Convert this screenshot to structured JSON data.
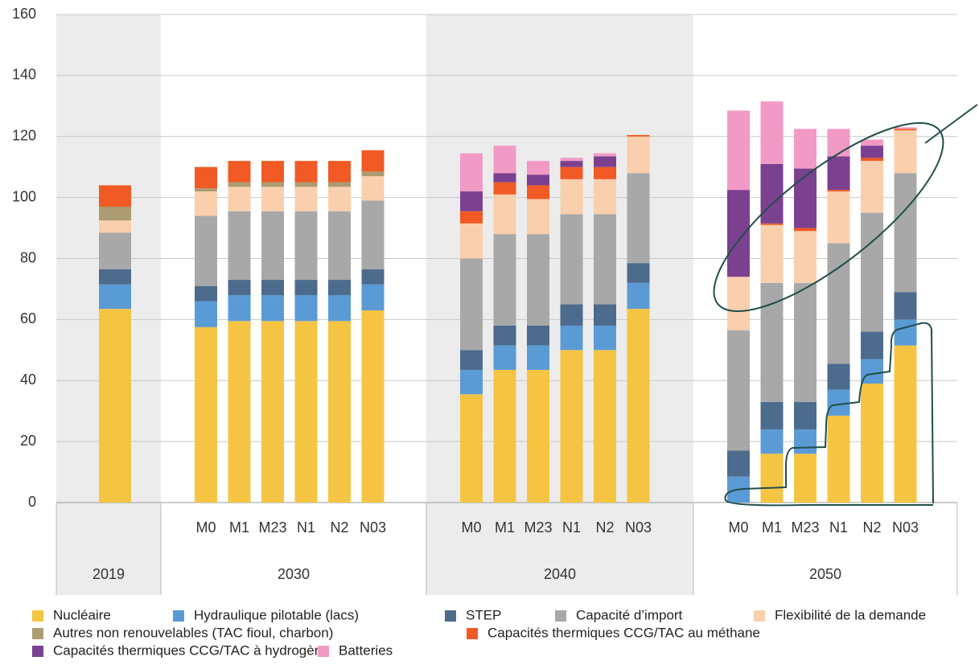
{
  "chart_data": {
    "type": "stacked-bar",
    "groups": [
      {
        "label": "2019",
        "categories": [
          null
        ]
      },
      {
        "label": "2030",
        "categories": [
          "M0",
          "M1",
          "M23",
          "N1",
          "N2",
          "N03"
        ]
      },
      {
        "label": "2040",
        "categories": [
          "M0",
          "M1",
          "M23",
          "N1",
          "N2",
          "N03"
        ]
      },
      {
        "label": "2050",
        "categories": [
          "M0",
          "M1",
          "M23",
          "N1",
          "N2",
          "N03"
        ]
      }
    ],
    "series": [
      {
        "name": "Nucléaire",
        "color": "#f5c443",
        "values": [
          63.5,
          57.5,
          59.5,
          59.5,
          59.5,
          59.5,
          63,
          35.5,
          43.5,
          43.5,
          50,
          50,
          63.5,
          0,
          16,
          16,
          28.5,
          39,
          51.5
        ]
      },
      {
        "name": "Hydraulique pilotable (lacs)",
        "color": "#5b9bd5",
        "values": [
          8,
          8.5,
          8.5,
          8.5,
          8.5,
          8.5,
          8.5,
          8,
          8,
          8,
          8,
          8,
          8.5,
          8.5,
          8,
          8,
          8.5,
          8,
          8.5
        ]
      },
      {
        "name": "STEP",
        "color": "#4d6b8c",
        "values": [
          5,
          5,
          5,
          5,
          5,
          5,
          5,
          6.5,
          6.5,
          6.5,
          7,
          7,
          6.5,
          8.5,
          9,
          9,
          8.5,
          9,
          9
        ]
      },
      {
        "name": "Capacité d’import",
        "color": "#a8a8a8",
        "values": [
          12,
          23,
          22.5,
          22.5,
          22.5,
          22.5,
          22.5,
          30,
          30,
          30,
          29.5,
          29.5,
          29.5,
          39.5,
          39,
          39,
          39.5,
          39,
          39
        ]
      },
      {
        "name": "Flexibilité de la demande",
        "color": "#f9cfad",
        "values": [
          4,
          8,
          8,
          8,
          8,
          8,
          8,
          11.5,
          13,
          11.5,
          11.5,
          11.5,
          12,
          17.5,
          19,
          17,
          17,
          17,
          14
        ]
      },
      {
        "name": "Autres non renouvelables (TAC fioul, charbon)",
        "color": "#ab9c72",
        "values": [
          4.5,
          1,
          1.5,
          1.5,
          1.5,
          1.5,
          1.5,
          0,
          0,
          0,
          0,
          0,
          0,
          0,
          0,
          0,
          0,
          0,
          0
        ]
      },
      {
        "name": "Capacités thermiques CCG/TAC au méthane",
        "color": "#f15a24",
        "values": [
          7,
          7,
          7,
          7,
          7,
          7,
          7,
          4,
          4,
          4.5,
          4,
          4,
          0.5,
          0,
          0.5,
          1,
          0.5,
          1,
          0.5
        ]
      },
      {
        "name": "Capacités thermiques CCG/TAC à hydrogène",
        "color": "#7b4190",
        "values": [
          0,
          0,
          0,
          0,
          0,
          0,
          0,
          6.5,
          3,
          3.5,
          2,
          3.5,
          0,
          28.5,
          19.5,
          19.5,
          11,
          4,
          0
        ]
      },
      {
        "name": "Batteries",
        "color": "#f29ac6",
        "values": [
          0,
          0,
          0,
          0,
          0,
          0,
          0,
          12.5,
          9,
          4.5,
          1,
          1,
          0,
          26,
          20.5,
          13,
          9,
          2,
          0.5
        ]
      }
    ],
    "ylim": [
      0,
      160
    ],
    "yticks": [
      0,
      20,
      40,
      60,
      80,
      100,
      120,
      140,
      160
    ],
    "grid": true
  }
}
